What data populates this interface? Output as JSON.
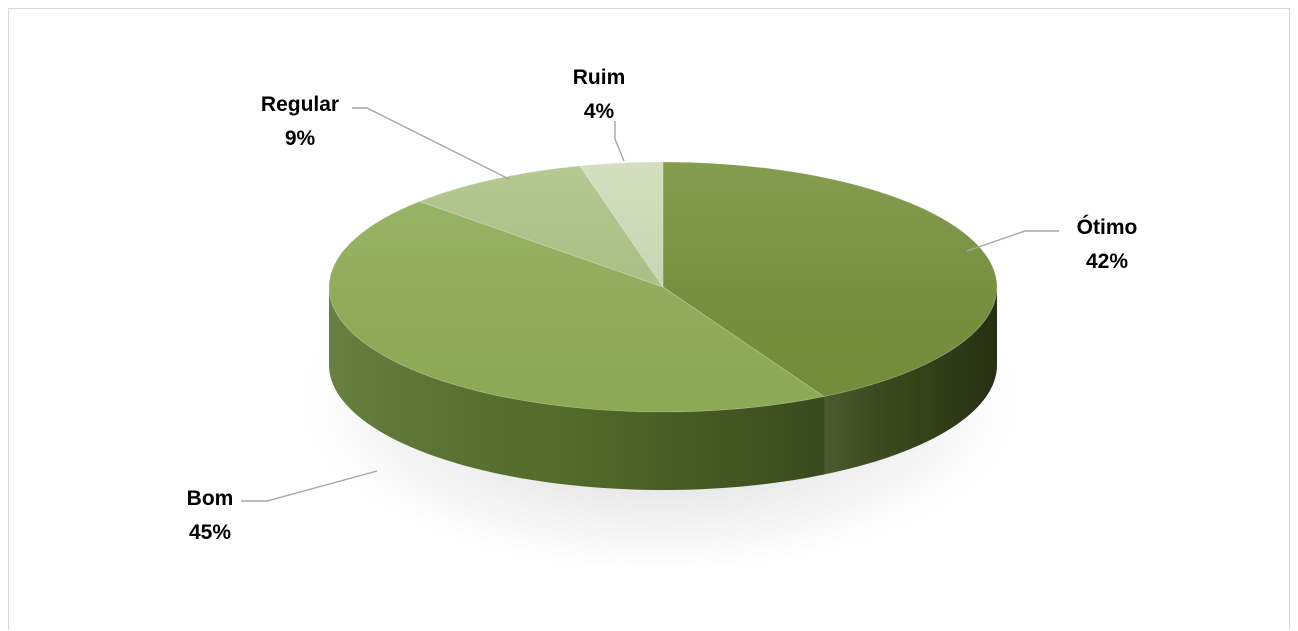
{
  "chart_data": {
    "type": "pie",
    "style": "3d",
    "title": "",
    "legend": "none",
    "categories": [
      "Ótimo",
      "Bom",
      "Regular",
      "Ruim"
    ],
    "values": [
      42,
      45,
      9,
      4
    ],
    "labels": [
      "42%",
      "45%",
      "9%",
      "4%"
    ],
    "colors": [
      "#77923c",
      "#92b05a",
      "#adc486",
      "#cfdcb8"
    ],
    "side_colors": [
      "#3b4a1c",
      "#58722d",
      "#6f8a45",
      "#8ea374"
    ]
  }
}
